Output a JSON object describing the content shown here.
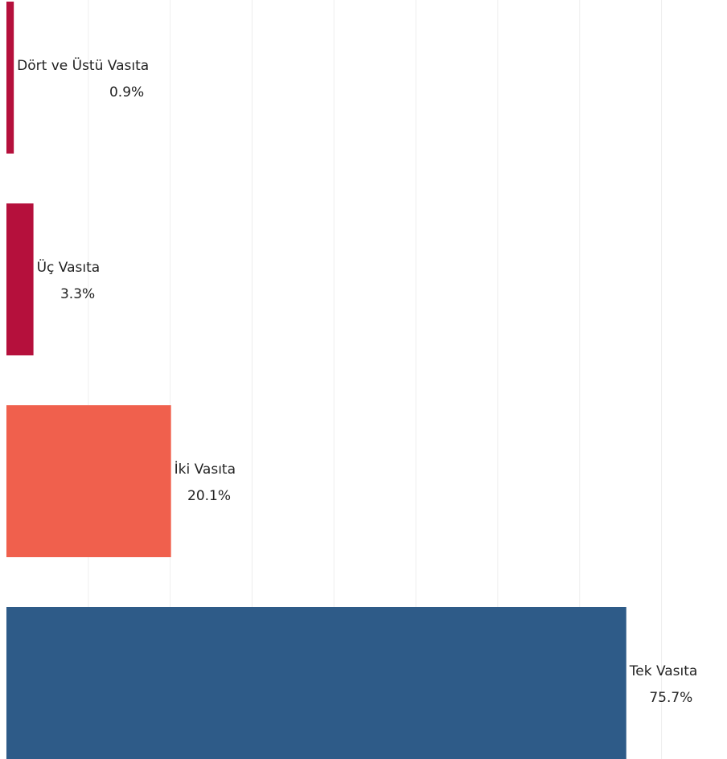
{
  "chart_data": {
    "type": "bar",
    "orientation": "horizontal",
    "categories": [
      "Dört ve Üstü Vasıta",
      "Üç Vasıta",
      "İki Vasıta",
      "Tek Vasıta"
    ],
    "values": [
      0.9,
      3.3,
      20.1,
      75.7
    ],
    "value_labels": [
      "0.9%",
      "3.3%",
      "20.1%",
      "75.7%"
    ],
    "colors": [
      "#b5103c",
      "#b5103c",
      "#f0604d",
      "#2e5b88"
    ],
    "xlim": [
      0,
      88
    ],
    "xticks": [
      10,
      20,
      30,
      40,
      50,
      60,
      70,
      80
    ],
    "grid": true
  }
}
